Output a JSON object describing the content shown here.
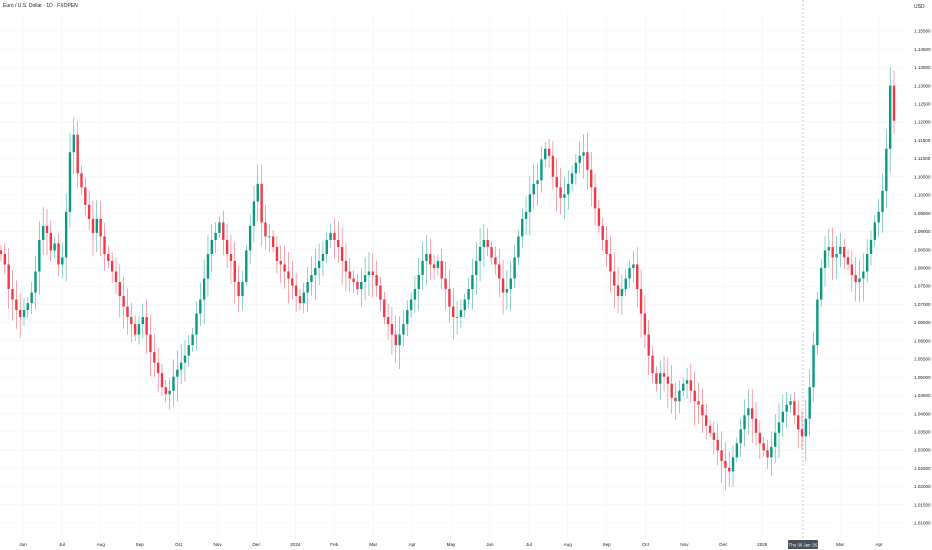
{
  "symbol": {
    "title": "Euro / U.S. Dollar · 1D · FXOPEN"
  },
  "price_scale": {
    "currency": "USD",
    "ticks": [
      "1.15500",
      "1.14500",
      "1.13500",
      "1.13000",
      "1.12500",
      "1.12000",
      "1.11500",
      "1.11000",
      "1.10500",
      "1.10000",
      "1.09500",
      "1.09000",
      "1.08500",
      "1.08000",
      "1.07500",
      "1.07000",
      "1.06500",
      "1.06000",
      "1.05500",
      "1.05000",
      "1.04500",
      "1.04000",
      "1.03500",
      "1.03000",
      "1.02500",
      "1.02000",
      "1.01500",
      "1.01000"
    ]
  },
  "time_scale": {
    "labels": [
      "Jun",
      "Jul",
      "Aug",
      "Sep",
      "Oct",
      "Nov",
      "Dec",
      "2024",
      "Feb",
      "Mar",
      "Apr",
      "May",
      "Jun",
      "Jul",
      "Aug",
      "Sep",
      "Oct",
      "Nov",
      "Dec",
      "2025",
      "Feb",
      "Mar",
      "Apr"
    ],
    "crosshair_label": "Thu 30 Jan '25"
  },
  "colors": {
    "up": "#089981",
    "down": "#f23645",
    "grid": "#f0f3fa",
    "text": "#131722",
    "crosshair": "#9598a1",
    "crosshair_label_bg": "#4a4f5c"
  },
  "chart_data": {
    "type": "candlestick",
    "title": "Euro / U.S. Dollar · 1D · FXOPEN",
    "y_axis": {
      "label": "USD",
      "range": [
        1.008,
        1.158
      ]
    },
    "x_axis_labels": [
      "Jun",
      "Jul",
      "Aug",
      "Sep",
      "Oct",
      "Nov",
      "Dec",
      "2024",
      "Feb",
      "Mar",
      "Apr",
      "May",
      "Jun",
      "Jul",
      "Aug",
      "Sep",
      "Oct",
      "Nov",
      "Dec",
      "2025",
      "Feb",
      "Mar",
      "Apr"
    ],
    "grid": true,
    "close_series": [
      1.089,
      1.086,
      1.079,
      1.076,
      1.073,
      1.071,
      1.073,
      1.075,
      1.078,
      1.084,
      1.093,
      1.097,
      1.095,
      1.09,
      1.092,
      1.086,
      1.088,
      1.101,
      1.118,
      1.123,
      1.112,
      1.108,
      1.103,
      1.099,
      1.095,
      1.099,
      1.094,
      1.089,
      1.087,
      1.084,
      1.081,
      1.077,
      1.074,
      1.071,
      1.069,
      1.066,
      1.069,
      1.071,
      1.066,
      1.061,
      1.058,
      1.055,
      1.051,
      1.049,
      1.05,
      1.054,
      1.056,
      1.058,
      1.06,
      1.063,
      1.066,
      1.072,
      1.076,
      1.082,
      1.089,
      1.093,
      1.095,
      1.098,
      1.093,
      1.089,
      1.087,
      1.081,
      1.077,
      1.081,
      1.09,
      1.097,
      1.104,
      1.109,
      1.098,
      1.094,
      1.094,
      1.091,
      1.087,
      1.086,
      1.084,
      1.082,
      1.08,
      1.077,
      1.075,
      1.078,
      1.081,
      1.083,
      1.085,
      1.087,
      1.089,
      1.093,
      1.095,
      1.093,
      1.091,
      1.087,
      1.084,
      1.082,
      1.081,
      1.079,
      1.081,
      1.083,
      1.084,
      1.083,
      1.08,
      1.076,
      1.071,
      1.069,
      1.066,
      1.063,
      1.066,
      1.069,
      1.073,
      1.076,
      1.079,
      1.083,
      1.087,
      1.089,
      1.086,
      1.085,
      1.087,
      1.082,
      1.079,
      1.074,
      1.071,
      1.071,
      1.073,
      1.076,
      1.079,
      1.083,
      1.087,
      1.091,
      1.093,
      1.091,
      1.088,
      1.086,
      1.082,
      1.078,
      1.079,
      1.082,
      1.088,
      1.094,
      1.099,
      1.101,
      1.106,
      1.109,
      1.11,
      1.116,
      1.119,
      1.117,
      1.111,
      1.108,
      1.105,
      1.106,
      1.109,
      1.112,
      1.115,
      1.117,
      1.118,
      1.113,
      1.108,
      1.102,
      1.097,
      1.093,
      1.089,
      1.084,
      1.08,
      1.077,
      1.079,
      1.082,
      1.085,
      1.086,
      1.079,
      1.072,
      1.066,
      1.06,
      1.055,
      1.052,
      1.055,
      1.054,
      1.052,
      1.048,
      1.047,
      1.05,
      1.052,
      1.053,
      1.05,
      1.047,
      1.046,
      1.043,
      1.04,
      1.038,
      1.036,
      1.033,
      1.03,
      1.028,
      1.027,
      1.031,
      1.035,
      1.039,
      1.043,
      1.045,
      1.042,
      1.038,
      1.035,
      1.033,
      1.031,
      1.034,
      1.038,
      1.041,
      1.044,
      1.046,
      1.047,
      1.043,
      1.039,
      1.037,
      1.042,
      1.051,
      1.063,
      1.076,
      1.085,
      1.09,
      1.091,
      1.088,
      1.089,
      1.091,
      1.088,
      1.086,
      1.083,
      1.081,
      1.082,
      1.084,
      1.089,
      1.093,
      1.098,
      1.101,
      1.107,
      1.119,
      1.137,
      1.127
    ]
  }
}
